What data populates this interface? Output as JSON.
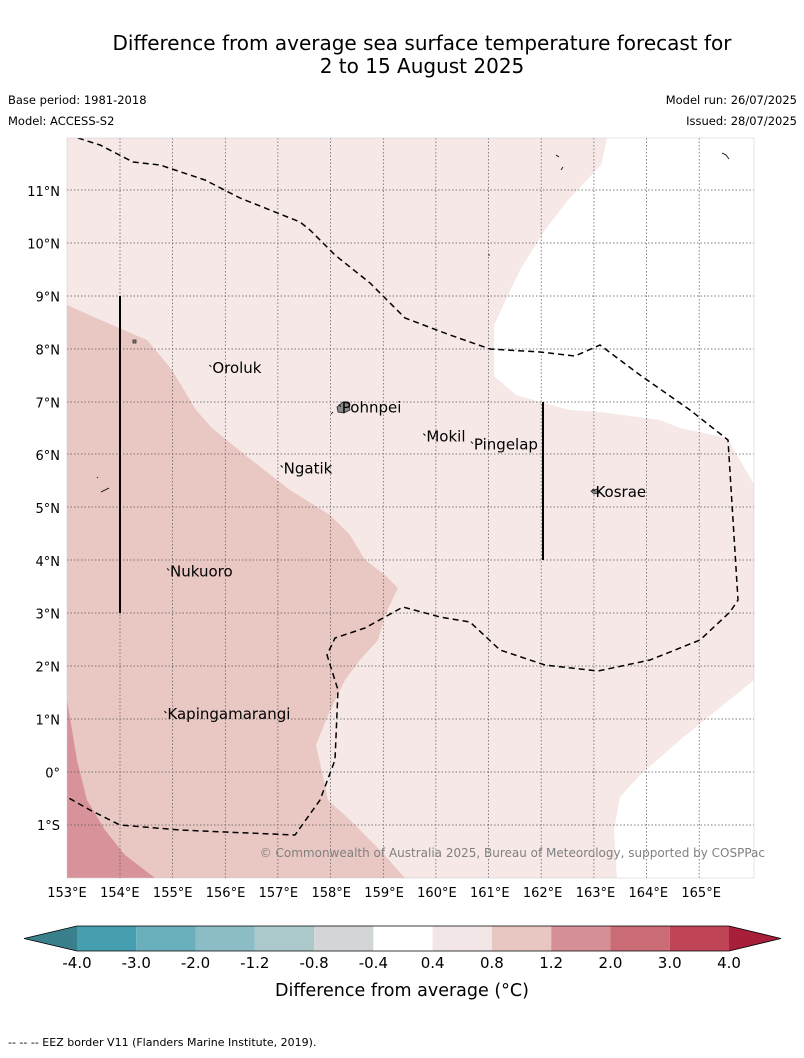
{
  "header": {
    "title_line1": "Difference from average sea surface temperature forecast for",
    "title_line2": "2 to 15 August 2025",
    "base_period": "Base period: 1981-2018",
    "model": "Model: ACCESS-S2",
    "model_run": "Model run: 26/07/2025",
    "issued": "Issued: 28/07/2025"
  },
  "map": {
    "lon_range": [
      153,
      166
    ],
    "lat_range": [
      -2,
      12
    ],
    "lon_ticks": [
      "153°E",
      "154°E",
      "155°E",
      "156°E",
      "157°E",
      "158°E",
      "159°E",
      "160°E",
      "161°E",
      "162°E",
      "163°E",
      "164°E",
      "165°E"
    ],
    "lat_ticks": [
      "11°N",
      "10°N",
      "9°N",
      "8°N",
      "7°N",
      "6°N",
      "5°N",
      "4°N",
      "3°N",
      "2°N",
      "1°N",
      "0°",
      "1°S"
    ],
    "places": [
      {
        "name": "Oroluk",
        "lon": 155.75,
        "lat": 7.65
      },
      {
        "name": "Pohnpei",
        "lon": 158.2,
        "lat": 6.9
      },
      {
        "name": "Mokil",
        "lon": 159.8,
        "lat": 6.35
      },
      {
        "name": "Pingelap",
        "lon": 160.7,
        "lat": 6.2
      },
      {
        "name": "Ngatik",
        "lon": 157.1,
        "lat": 5.75
      },
      {
        "name": "Kosrae",
        "lon": 163.0,
        "lat": 5.3
      },
      {
        "name": "Nukuoro",
        "lon": 154.95,
        "lat": 3.8
      },
      {
        "name": "Kapingamarangi",
        "lon": 154.9,
        "lat": 1.1
      }
    ],
    "copyright": "© Commonwealth of Australia 2025, Bureau of Meteorology, supported by COSPPac"
  },
  "colorbar": {
    "ticks": [
      "-4.0",
      "-3.0",
      "-2.0",
      "-1.2",
      "-0.8",
      "-0.4",
      "0.4",
      "0.8",
      "1.2",
      "2.0",
      "3.0",
      "4.0"
    ],
    "colors": [
      "#469fb0",
      "#6aafbc",
      "#8cbcc5",
      "#abc9cb",
      "#d2d6d6",
      "#ffffff",
      "#f3e6e6",
      "#e8c6c1",
      "#d78f97",
      "#cb6b75",
      "#bf4456"
    ],
    "under_color": "#3a7f8c",
    "over_color": "#a81f3b",
    "label": "Difference from average (°C)"
  },
  "footnote": "--  --  -- EEZ border V11 (Flanders Marine Institute, 2019)."
}
